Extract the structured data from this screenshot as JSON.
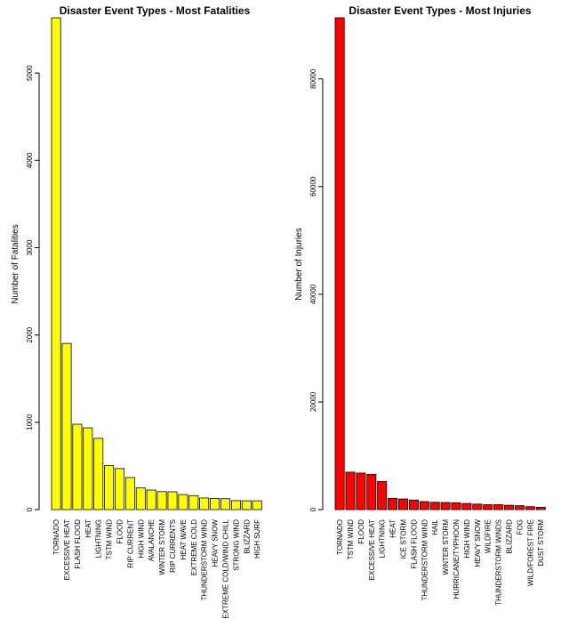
{
  "chart_data": [
    {
      "type": "bar",
      "title": "Disaster Event Types - Most Fatalities",
      "xlabel": "",
      "ylabel": "Number of Fatalities",
      "ylim": [
        0,
        5633
      ],
      "yticks": [
        0,
        1000,
        2000,
        3000,
        4000,
        5000
      ],
      "color": "#ffff00",
      "categories": [
        "TORNADO",
        "EXCESSIVE HEAT",
        "FLASH FLOOD",
        "HEAT",
        "LIGHTNING",
        "TSTM WIND",
        "FLOOD",
        "RIP CURRENT",
        "HIGH WIND",
        "AVALANCHE",
        "WINTER STORM",
        "RIP CURRENTS",
        "HEAT WAVE",
        "EXTREME COLD",
        "THUNDERSTORM WIND",
        "HEAVY SNOW",
        "EXTREME COLD/WIND CHILL",
        "STRONG WIND",
        "BLIZZARD",
        "HIGH SURF"
      ],
      "values": [
        5633,
        1903,
        978,
        937,
        816,
        504,
        470,
        368,
        248,
        224,
        206,
        204,
        172,
        160,
        133,
        127,
        125,
        103,
        101,
        101
      ]
    },
    {
      "type": "bar",
      "title": "Disaster Event Types - Most Injuries",
      "xlabel": "",
      "ylabel": "Number of Injuries",
      "ylim": [
        0,
        91346
      ],
      "yticks": [
        0,
        20000,
        40000,
        60000,
        80000
      ],
      "color": "#ff0000",
      "categories": [
        "TORNADO",
        "TSTM WIND",
        "FLOOD",
        "EXCESSIVE HEAT",
        "LIGHTNING",
        "HEAT",
        "ICE STORM",
        "FLASH FLOOD",
        "THUNDERSTORM WIND",
        "HAIL",
        "WINTER STORM",
        "HURRICANE/TYPHOON",
        "HIGH WIND",
        "HEAVY SNOW",
        "WILDFIRE",
        "THUNDERSTORM WINDS",
        "BLIZZARD",
        "FOG",
        "WILD/FOREST FIRE",
        "DUST STORM"
      ],
      "values": [
        91346,
        6957,
        6789,
        6525,
        5230,
        2100,
        1975,
        1777,
        1488,
        1361,
        1321,
        1275,
        1137,
        1021,
        911,
        908,
        805,
        734,
        545,
        440
      ]
    }
  ]
}
